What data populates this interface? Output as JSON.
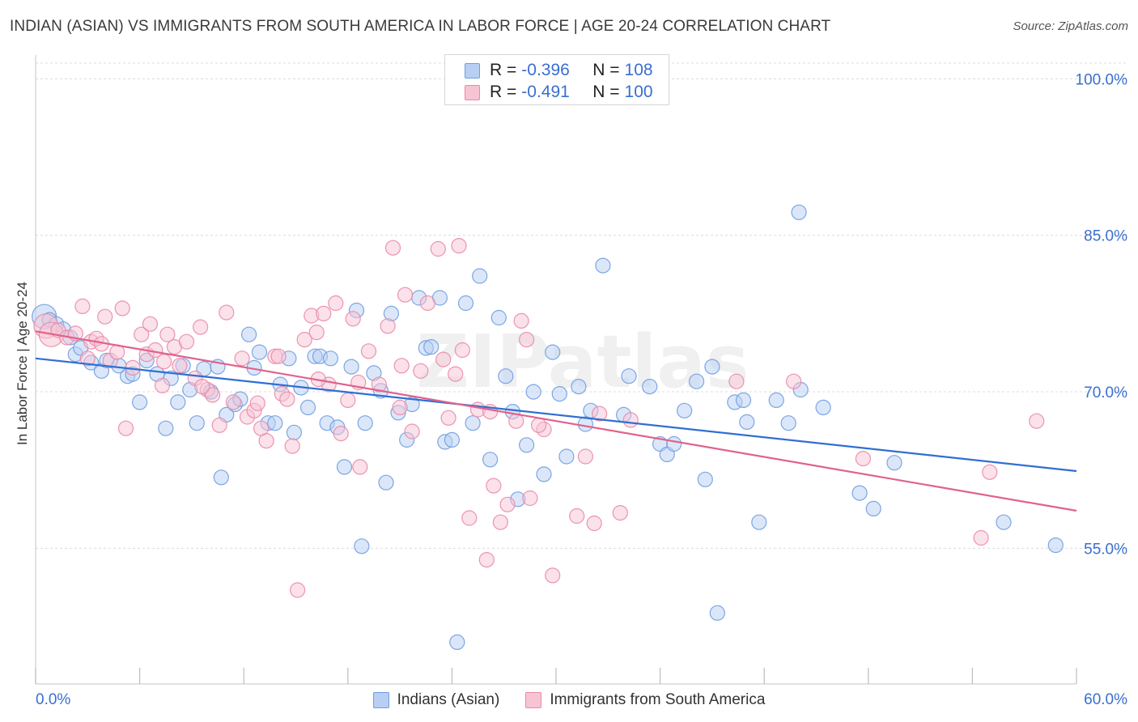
{
  "title": "INDIAN (ASIAN) VS IMMIGRANTS FROM SOUTH AMERICA IN LABOR FORCE | AGE 20-24 CORRELATION CHART",
  "source": "Source: ZipAtlas.com",
  "watermark": "ZIPatlas",
  "legend_top": {
    "rows": [
      {
        "r_label": "R =",
        "r_value": "-0.396",
        "n_label": "N =",
        "n_value": "108",
        "color": "#6f9de0",
        "fill": "#b8cff3"
      },
      {
        "r_label": "R =",
        "r_value": "-0.491",
        "n_label": "N =",
        "n_value": "100",
        "color": "#e989a8",
        "fill": "#f7c4d4"
      }
    ]
  },
  "legend_bottom": {
    "items": [
      {
        "label": "Indians (Asian)",
        "color": "#6f9de0",
        "fill": "#b8cff3"
      },
      {
        "label": "Immigrants from South America",
        "color": "#e989a8",
        "fill": "#f7c4d4"
      }
    ]
  },
  "chart_data": {
    "type": "scatter",
    "title": "INDIAN (ASIAN) VS IMMIGRANTS FROM SOUTH AMERICA IN LABOR FORCE | AGE 20-24 CORRELATION CHART",
    "xlabel": "",
    "ylabel": "In Labor Force | Age 20-24",
    "xlim": [
      0,
      60
    ],
    "ylim": [
      42,
      101.5
    ],
    "x_tick_labels": [
      "0.0%",
      "60.0%"
    ],
    "y_ticks": [
      55,
      70,
      85,
      100
    ],
    "y_tick_labels": [
      "55.0%",
      "70.0%",
      "85.0%",
      "100.0%"
    ],
    "grid": true,
    "legend_position": "top-center",
    "series": [
      {
        "name": "Indians (Asian)",
        "color": "#6f9de0",
        "fill": "#b8cff3",
        "line_color": "#2f6fd2",
        "trend": {
          "x": [
            0,
            60
          ],
          "y": [
            73.2,
            62.4
          ]
        },
        "points": [
          [
            0.5,
            77.2,
            "l"
          ],
          [
            0.8,
            76.9
          ],
          [
            1.2,
            76.5
          ],
          [
            1.6,
            76.0
          ],
          [
            2.0,
            75.2
          ],
          [
            2.3,
            73.6
          ],
          [
            2.6,
            74.2
          ],
          [
            3.2,
            72.8
          ],
          [
            3.8,
            72.0
          ],
          [
            4.1,
            73.0
          ],
          [
            4.8,
            72.5
          ],
          [
            5.3,
            71.5
          ],
          [
            5.6,
            71.7
          ],
          [
            6.0,
            69.0
          ],
          [
            6.4,
            73.0
          ],
          [
            7.0,
            71.7
          ],
          [
            7.5,
            66.5
          ],
          [
            7.8,
            71.3
          ],
          [
            8.2,
            69.0
          ],
          [
            8.5,
            72.5
          ],
          [
            8.9,
            70.2
          ],
          [
            9.3,
            67.0
          ],
          [
            9.7,
            72.2
          ],
          [
            10.1,
            70.0
          ],
          [
            10.5,
            72.4
          ],
          [
            10.7,
            61.8
          ],
          [
            11.0,
            67.8
          ],
          [
            11.5,
            68.8
          ],
          [
            11.8,
            69.3
          ],
          [
            12.3,
            75.5
          ],
          [
            12.6,
            72.3
          ],
          [
            12.9,
            73.8
          ],
          [
            13.4,
            67.0
          ],
          [
            13.8,
            67.0
          ],
          [
            14.1,
            70.7
          ],
          [
            14.6,
            73.2
          ],
          [
            14.9,
            66.1
          ],
          [
            15.3,
            70.4
          ],
          [
            15.7,
            68.5
          ],
          [
            16.1,
            73.4
          ],
          [
            16.4,
            73.4
          ],
          [
            16.8,
            67.0
          ],
          [
            17.0,
            73.2
          ],
          [
            17.4,
            66.6
          ],
          [
            17.8,
            62.8
          ],
          [
            18.2,
            72.4
          ],
          [
            18.5,
            77.8
          ],
          [
            18.8,
            55.2
          ],
          [
            19.0,
            67.0
          ],
          [
            19.5,
            71.8
          ],
          [
            19.9,
            70.1
          ],
          [
            20.2,
            61.3
          ],
          [
            20.5,
            77.5
          ],
          [
            20.9,
            68.0
          ],
          [
            21.4,
            65.4
          ],
          [
            21.7,
            68.8
          ],
          [
            22.1,
            79.0
          ],
          [
            22.5,
            74.2
          ],
          [
            22.8,
            74.3
          ],
          [
            23.3,
            79.0
          ],
          [
            23.6,
            65.2
          ],
          [
            24.0,
            65.4
          ],
          [
            24.3,
            46.0
          ],
          [
            24.8,
            78.5
          ],
          [
            25.2,
            67.0
          ],
          [
            25.6,
            81.1
          ],
          [
            26.2,
            63.5
          ],
          [
            26.7,
            77.1
          ],
          [
            27.1,
            71.5
          ],
          [
            27.5,
            68.1
          ],
          [
            27.8,
            59.7
          ],
          [
            28.3,
            64.9
          ],
          [
            28.7,
            70.0
          ],
          [
            29.3,
            62.1
          ],
          [
            29.8,
            73.8
          ],
          [
            30.2,
            69.8
          ],
          [
            30.6,
            63.8
          ],
          [
            31.3,
            70.5
          ],
          [
            31.7,
            66.9
          ],
          [
            32.0,
            68.2
          ],
          [
            32.7,
            82.1
          ],
          [
            33.9,
            67.8
          ],
          [
            34.2,
            71.5
          ],
          [
            35.4,
            70.5
          ],
          [
            36.0,
            65.0
          ],
          [
            36.4,
            64.0
          ],
          [
            36.8,
            65.0
          ],
          [
            37.4,
            68.2
          ],
          [
            38.1,
            71.0
          ],
          [
            38.6,
            61.6
          ],
          [
            39.0,
            72.4
          ],
          [
            39.3,
            48.8
          ],
          [
            40.3,
            69.0
          ],
          [
            40.8,
            69.2
          ],
          [
            41.0,
            67.1
          ],
          [
            41.7,
            57.5
          ],
          [
            42.7,
            69.2
          ],
          [
            43.4,
            67.0
          ],
          [
            44.1,
            70.2
          ],
          [
            44.0,
            87.2
          ],
          [
            45.4,
            68.5
          ],
          [
            47.5,
            60.3
          ],
          [
            48.3,
            58.8
          ],
          [
            49.5,
            63.2
          ],
          [
            55.8,
            57.5
          ],
          [
            58.8,
            55.3
          ]
        ]
      },
      {
        "name": "Immigrants from South America",
        "color": "#e989a8",
        "fill": "#f7c4d4",
        "line_color": "#e0628c",
        "trend": {
          "x": [
            0,
            60
          ],
          "y": [
            75.8,
            58.6
          ]
        },
        "points": [
          [
            0.6,
            76.3,
            "l"
          ],
          [
            0.9,
            75.5,
            "l"
          ],
          [
            1.3,
            75.9
          ],
          [
            1.8,
            75.2
          ],
          [
            2.3,
            75.6
          ],
          [
            2.7,
            78.2
          ],
          [
            3.2,
            74.8
          ],
          [
            3.5,
            75.1
          ],
          [
            3.8,
            74.6
          ],
          [
            4.0,
            77.2
          ],
          [
            4.3,
            73.0
          ],
          [
            4.7,
            73.8
          ],
          [
            5.0,
            78.0
          ],
          [
            5.2,
            66.5
          ],
          [
            5.6,
            72.3
          ],
          [
            6.1,
            75.5
          ],
          [
            6.4,
            73.6
          ],
          [
            6.6,
            76.5
          ],
          [
            6.9,
            74.0
          ],
          [
            7.4,
            72.9
          ],
          [
            7.6,
            75.5
          ],
          [
            8.0,
            74.3
          ],
          [
            8.3,
            72.5
          ],
          [
            8.7,
            74.8
          ],
          [
            9.2,
            71.3
          ],
          [
            9.5,
            76.2
          ],
          [
            9.9,
            70.2
          ],
          [
            10.2,
            69.7
          ],
          [
            10.6,
            66.8
          ],
          [
            11.0,
            77.6
          ],
          [
            11.4,
            69.0
          ],
          [
            11.9,
            73.2
          ],
          [
            12.2,
            67.6
          ],
          [
            12.6,
            68.2
          ],
          [
            13.0,
            66.5
          ],
          [
            13.3,
            65.3
          ],
          [
            13.8,
            73.4
          ],
          [
            14.2,
            69.8
          ],
          [
            14.5,
            69.3
          ],
          [
            14.8,
            64.8
          ],
          [
            15.1,
            51.0
          ],
          [
            15.5,
            75.0
          ],
          [
            15.9,
            77.3
          ],
          [
            16.2,
            75.7
          ],
          [
            16.6,
            77.5
          ],
          [
            16.9,
            70.7
          ],
          [
            17.3,
            78.5
          ],
          [
            17.6,
            66.0
          ],
          [
            18.0,
            69.2
          ],
          [
            18.3,
            77.0
          ],
          [
            18.7,
            62.8
          ],
          [
            19.2,
            73.9
          ],
          [
            19.8,
            70.7
          ],
          [
            20.3,
            76.3
          ],
          [
            20.6,
            83.8
          ],
          [
            21.1,
            72.5
          ],
          [
            21.3,
            79.3
          ],
          [
            21.7,
            66.2
          ],
          [
            22.2,
            72.0
          ],
          [
            22.6,
            78.5
          ],
          [
            23.2,
            83.7
          ],
          [
            23.5,
            73.1
          ],
          [
            23.8,
            67.5
          ],
          [
            24.2,
            71.7
          ],
          [
            24.6,
            74.0
          ],
          [
            25.0,
            57.9
          ],
          [
            25.5,
            68.3
          ],
          [
            26.0,
            53.9
          ],
          [
            26.4,
            61.0
          ],
          [
            26.8,
            57.5
          ],
          [
            27.2,
            59.2
          ],
          [
            27.7,
            67.2
          ],
          [
            28.0,
            76.8
          ],
          [
            28.3,
            75.0
          ],
          [
            29.3,
            66.4
          ],
          [
            29.8,
            52.4
          ],
          [
            31.2,
            58.1
          ],
          [
            31.7,
            63.8
          ],
          [
            32.2,
            57.4
          ],
          [
            32.5,
            67.9
          ],
          [
            33.7,
            58.4
          ],
          [
            34.3,
            67.3
          ],
          [
            40.4,
            71.0
          ],
          [
            43.7,
            71.0
          ],
          [
            47.7,
            63.6
          ],
          [
            54.5,
            56.0
          ],
          [
            55.0,
            62.3
          ],
          [
            57.7,
            67.2
          ],
          [
            7.3,
            70.6
          ],
          [
            12.8,
            68.9
          ],
          [
            18.6,
            70.9
          ],
          [
            21.0,
            68.5
          ],
          [
            26.2,
            68.1
          ],
          [
            29.0,
            66.8
          ],
          [
            9.6,
            70.5
          ],
          [
            3.0,
            73.2
          ],
          [
            14.0,
            73.4
          ],
          [
            16.3,
            71.2
          ],
          [
            24.4,
            84.0
          ],
          [
            28.5,
            59.8
          ]
        ]
      }
    ]
  }
}
